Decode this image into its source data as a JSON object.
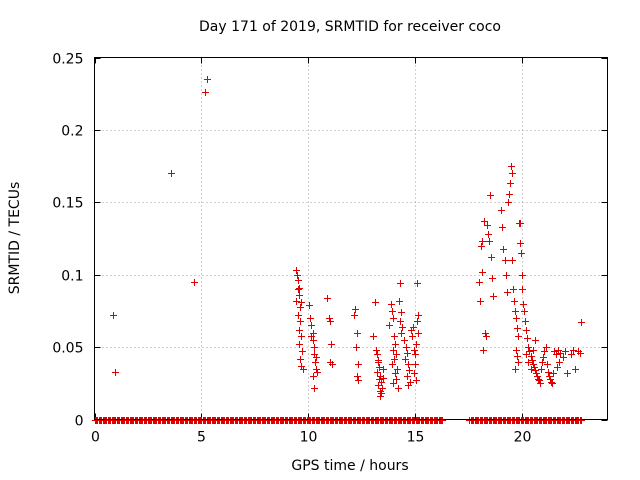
{
  "chart_data": {
    "type": "scatter",
    "title": "Day 171 of 2019, SRMTID for receiver coco",
    "xlabel": "GPS time / hours",
    "ylabel": "SRMTID / TECUs",
    "xlim": [
      0,
      24
    ],
    "ylim": [
      0,
      0.25
    ],
    "xticks": [
      0,
      5,
      10,
      15,
      20
    ],
    "yticks": [
      0,
      0.05,
      0.1,
      0.15,
      0.2,
      0.25
    ],
    "xtick_labels": [
      "0",
      "5",
      "10",
      "15",
      "20"
    ],
    "ytick_labels": [
      "0",
      "0.05",
      "0.1",
      "0.15",
      "0.2",
      "0.25"
    ],
    "grid": true,
    "marker": "+",
    "color": "#e00000",
    "series": [
      {
        "name": "SRMTID",
        "points": [
          [
            0.85,
            0.072
          ],
          [
            0.95,
            0.033
          ],
          [
            3.6,
            0.17
          ],
          [
            4.65,
            0.095
          ],
          [
            5.15,
            0.226
          ],
          [
            5.25,
            0.235
          ],
          [
            9.42,
            0.103
          ],
          [
            9.48,
            0.1
          ],
          [
            9.52,
            0.096
          ],
          [
            9.55,
            0.091
          ],
          [
            9.58,
            0.086
          ],
          [
            9.45,
            0.082
          ],
          [
            9.6,
            0.078
          ],
          [
            9.5,
            0.072
          ],
          [
            9.62,
            0.068
          ],
          [
            9.55,
            0.062
          ],
          [
            9.65,
            0.058
          ],
          [
            9.58,
            0.052
          ],
          [
            9.7,
            0.047
          ],
          [
            9.62,
            0.042
          ],
          [
            9.68,
            0.037
          ],
          [
            9.75,
            0.035
          ],
          [
            9.52,
            0.09
          ],
          [
            9.66,
            0.081
          ],
          [
            10.05,
            0.079
          ],
          [
            10.1,
            0.07
          ],
          [
            10.15,
            0.065
          ],
          [
            10.2,
            0.06
          ],
          [
            10.22,
            0.055
          ],
          [
            10.25,
            0.05
          ],
          [
            10.28,
            0.045
          ],
          [
            10.3,
            0.04
          ],
          [
            10.35,
            0.035
          ],
          [
            10.4,
            0.033
          ],
          [
            10.2,
            0.03
          ],
          [
            10.25,
            0.022
          ],
          [
            10.38,
            0.043
          ],
          [
            10.12,
            0.058
          ],
          [
            10.9,
            0.084
          ],
          [
            10.95,
            0.07
          ],
          [
            11.0,
            0.068
          ],
          [
            11.05,
            0.052
          ],
          [
            11.0,
            0.04
          ],
          [
            11.1,
            0.038
          ],
          [
            12.2,
            0.076
          ],
          [
            12.15,
            0.072
          ],
          [
            12.3,
            0.06
          ],
          [
            12.25,
            0.05
          ],
          [
            12.35,
            0.038
          ],
          [
            12.3,
            0.03
          ],
          [
            12.35,
            0.027
          ],
          [
            13.1,
            0.081
          ],
          [
            13.05,
            0.058
          ],
          [
            13.15,
            0.048
          ],
          [
            13.2,
            0.045
          ],
          [
            13.25,
            0.04
          ],
          [
            13.3,
            0.036
          ],
          [
            13.2,
            0.033
          ],
          [
            13.35,
            0.03
          ],
          [
            13.3,
            0.028
          ],
          [
            13.4,
            0.026
          ],
          [
            13.25,
            0.024
          ],
          [
            13.45,
            0.022
          ],
          [
            13.38,
            0.02
          ],
          [
            13.42,
            0.018
          ],
          [
            13.35,
            0.016
          ],
          [
            13.5,
            0.035
          ],
          [
            13.52,
            0.029
          ],
          [
            13.28,
            0.041
          ],
          [
            13.85,
            0.08
          ],
          [
            13.9,
            0.075
          ],
          [
            13.95,
            0.07
          ],
          [
            13.8,
            0.065
          ],
          [
            14.0,
            0.058
          ],
          [
            14.05,
            0.052
          ],
          [
            13.95,
            0.048
          ],
          [
            14.1,
            0.045
          ],
          [
            14.0,
            0.042
          ],
          [
            13.9,
            0.038
          ],
          [
            14.15,
            0.035
          ],
          [
            14.05,
            0.032
          ],
          [
            14.1,
            0.028
          ],
          [
            13.98,
            0.025
          ],
          [
            14.2,
            0.022
          ],
          [
            14.25,
            0.082
          ],
          [
            14.3,
            0.094
          ],
          [
            14.35,
            0.074
          ],
          [
            14.28,
            0.068
          ],
          [
            14.4,
            0.064
          ],
          [
            14.32,
            0.06
          ],
          [
            14.5,
            0.055
          ],
          [
            14.55,
            0.05
          ],
          [
            14.6,
            0.046
          ],
          [
            14.52,
            0.042
          ],
          [
            14.65,
            0.038
          ],
          [
            14.7,
            0.034
          ],
          [
            14.6,
            0.03
          ],
          [
            14.75,
            0.026
          ],
          [
            14.68,
            0.024
          ],
          [
            14.8,
            0.062
          ],
          [
            14.85,
            0.058
          ],
          [
            14.9,
            0.064
          ],
          [
            14.95,
            0.048
          ],
          [
            15.0,
            0.045
          ],
          [
            15.05,
            0.052
          ],
          [
            15.1,
            0.068
          ],
          [
            15.15,
            0.072
          ],
          [
            15.1,
            0.094
          ],
          [
            15.0,
            0.038
          ],
          [
            14.95,
            0.032
          ],
          [
            15.05,
            0.027
          ],
          [
            15.12,
            0.06
          ],
          [
            18.0,
            0.095
          ],
          [
            18.05,
            0.082
          ],
          [
            18.1,
            0.12
          ],
          [
            18.15,
            0.123
          ],
          [
            18.2,
            0.137
          ],
          [
            18.25,
            0.06
          ],
          [
            18.3,
            0.058
          ],
          [
            18.18,
            0.048
          ],
          [
            18.12,
            0.102
          ],
          [
            18.35,
            0.134
          ],
          [
            18.4,
            0.128
          ],
          [
            18.45,
            0.123
          ],
          [
            18.5,
            0.155
          ],
          [
            18.55,
            0.112
          ],
          [
            18.6,
            0.098
          ],
          [
            18.65,
            0.085
          ],
          [
            19.0,
            0.145
          ],
          [
            19.05,
            0.133
          ],
          [
            19.1,
            0.118
          ],
          [
            19.2,
            0.11
          ],
          [
            19.25,
            0.1
          ],
          [
            19.3,
            0.088
          ],
          [
            19.35,
            0.15
          ],
          [
            19.4,
            0.156
          ],
          [
            19.45,
            0.163
          ],
          [
            19.5,
            0.175
          ],
          [
            19.52,
            0.17
          ],
          [
            19.55,
            0.11
          ],
          [
            19.6,
            0.09
          ],
          [
            19.62,
            0.082
          ],
          [
            19.65,
            0.075
          ],
          [
            19.7,
            0.07
          ],
          [
            19.75,
            0.063
          ],
          [
            19.8,
            0.058
          ],
          [
            19.85,
            0.136
          ],
          [
            19.9,
            0.136
          ],
          [
            19.92,
            0.122
          ],
          [
            19.95,
            0.115
          ],
          [
            19.98,
            0.1
          ],
          [
            20.0,
            0.09
          ],
          [
            19.7,
            0.048
          ],
          [
            19.75,
            0.044
          ],
          [
            19.8,
            0.04
          ],
          [
            19.65,
            0.035
          ],
          [
            20.05,
            0.08
          ],
          [
            20.1,
            0.075
          ],
          [
            20.15,
            0.068
          ],
          [
            20.2,
            0.062
          ],
          [
            20.25,
            0.056
          ],
          [
            20.3,
            0.05
          ],
          [
            20.35,
            0.047
          ],
          [
            20.4,
            0.044
          ],
          [
            20.45,
            0.041
          ],
          [
            20.5,
            0.038
          ],
          [
            20.55,
            0.036
          ],
          [
            20.6,
            0.034
          ],
          [
            20.65,
            0.032
          ],
          [
            20.7,
            0.03
          ],
          [
            20.75,
            0.028
          ],
          [
            20.8,
            0.027
          ],
          [
            20.85,
            0.025
          ],
          [
            20.9,
            0.035
          ],
          [
            20.95,
            0.04
          ],
          [
            21.0,
            0.043
          ],
          [
            21.05,
            0.047
          ],
          [
            21.1,
            0.05
          ],
          [
            21.15,
            0.038
          ],
          [
            21.2,
            0.033
          ],
          [
            21.25,
            0.03
          ],
          [
            21.3,
            0.028
          ],
          [
            21.35,
            0.026
          ],
          [
            21.4,
            0.025
          ],
          [
            21.45,
            0.032
          ],
          [
            20.2,
            0.045
          ],
          [
            20.3,
            0.04
          ],
          [
            20.4,
            0.035
          ],
          [
            20.5,
            0.048
          ],
          [
            20.6,
            0.055
          ],
          [
            21.5,
            0.047
          ],
          [
            21.6,
            0.045
          ],
          [
            21.7,
            0.048
          ],
          [
            21.8,
            0.046
          ],
          [
            21.9,
            0.043
          ],
          [
            22.0,
            0.047
          ],
          [
            21.75,
            0.04
          ],
          [
            21.65,
            0.036
          ],
          [
            22.1,
            0.032
          ],
          [
            22.3,
            0.045
          ],
          [
            22.4,
            0.048
          ],
          [
            22.5,
            0.035
          ],
          [
            22.6,
            0.047
          ],
          [
            22.7,
            0.046
          ],
          [
            22.75,
            0.067
          ]
        ]
      },
      {
        "name": "zero baseline",
        "x_start": 0,
        "x_end": 22.8,
        "y": 0,
        "gaps": [
          [
            16.3,
            17.5
          ]
        ]
      }
    ]
  }
}
